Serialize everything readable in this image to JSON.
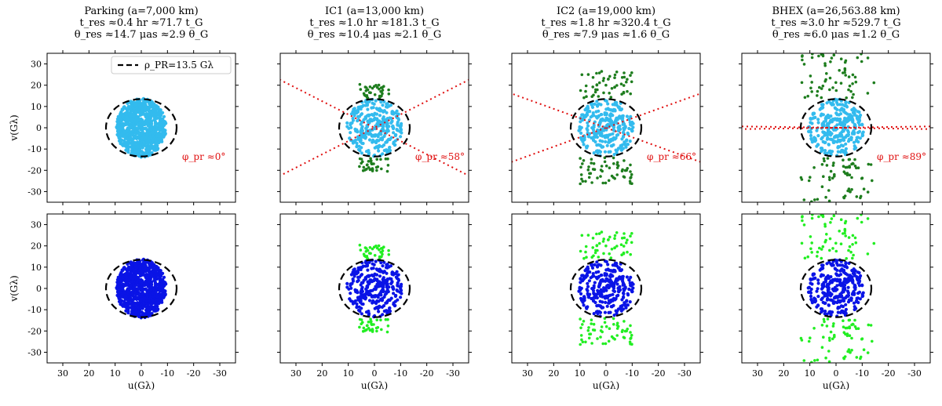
{
  "colors": {
    "light_blue": "#33bbee",
    "dark_green": "#1e7d1e",
    "blue": "#0a14e6",
    "lime": "#22ee22",
    "red": "#e01010",
    "black": "#000000"
  },
  "chart_data": {
    "type": "scatter",
    "xlabel": "u(Gλ)",
    "ylabel": "v(Gλ)",
    "xlim": [
      36,
      -36
    ],
    "ylim": [
      -35,
      35
    ],
    "xticks": [
      30,
      20,
      10,
      0,
      -10,
      -20,
      -30
    ],
    "yticks": [
      30,
      20,
      10,
      0,
      -10,
      -20,
      -30
    ],
    "legend": {
      "label": "ρ_PR=13.5 Gλ",
      "location": "top-right",
      "style": "black dashed"
    },
    "circle_radius_glambda": 13.5,
    "columns": [
      {
        "name": "Parking",
        "title_lines": [
          "Parking (a=7,000 km)",
          "t_res ≈0.4 hr ≈71.7 t_G",
          "θ_res ≈14.7 μas ≈2.9 θ_G"
        ],
        "phi_label": "φ_pr ≈0°",
        "phi_deg": 0,
        "max_baseline": 13.5,
        "has_legend": true,
        "has_lines": false
      },
      {
        "name": "IC1",
        "title_lines": [
          "IC1 (a=13,000 km)",
          "t_res ≈1.0 hr ≈181.3 t_G",
          "θ_res ≈10.4 μas ≈2.1 θ_G"
        ],
        "phi_label": "φ_pr ≈58°",
        "phi_deg": 58,
        "max_baseline": 20,
        "has_legend": false,
        "has_lines": true
      },
      {
        "name": "IC2",
        "title_lines": [
          "IC2 (a=19,000 km)",
          "t_res ≈1.8 hr ≈320.4 t_G",
          "θ_res ≈7.9 μas ≈1.6 θ_G"
        ],
        "phi_label": "φ_pr ≈66°",
        "phi_deg": 66,
        "max_baseline": 26,
        "has_legend": false,
        "has_lines": true
      },
      {
        "name": "BHEX",
        "title_lines": [
          "BHEX (a=26,563.88 km)",
          "t_res ≈3.0 hr ≈529.7 t_G",
          "θ_res ≈6.0 μas ≈1.2 θ_G"
        ],
        "phi_label": "φ_pr ≈89°",
        "phi_deg": 89,
        "max_baseline": 35,
        "has_legend": false,
        "has_lines": true
      }
    ],
    "rows": [
      {
        "row": "top",
        "inner_color": "light_blue",
        "outer_color": "dark_green",
        "description": "uv coverage with precession lines"
      },
      {
        "row": "bottom",
        "inner_color": "blue",
        "outer_color": "lime",
        "description": "uv coverage"
      }
    ]
  }
}
